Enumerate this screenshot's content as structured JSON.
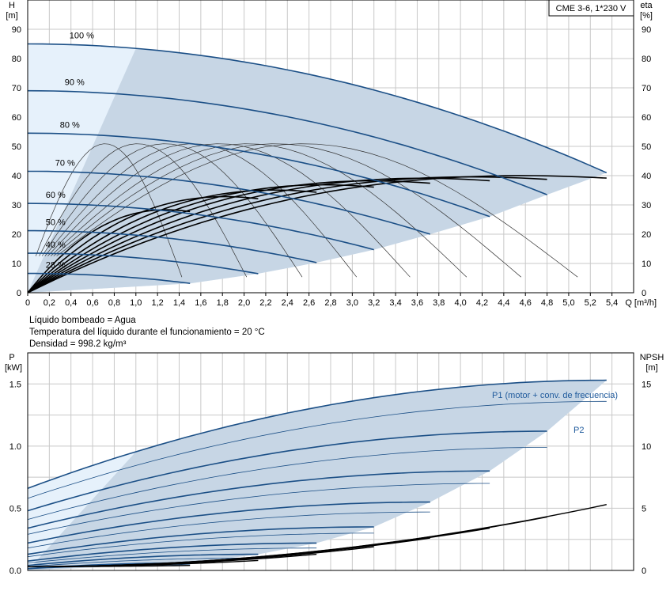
{
  "colors": {
    "grid": "#c8c8c8",
    "frame": "#000000",
    "curve_blue": "#1b4f86",
    "curve_black": "#000000",
    "region_fill": "#c7d6e5",
    "light_fill": "#e6f1fb",
    "label_blue": "#1f5a9c"
  },
  "info": {
    "line1": "Líquido bombeado = Agua",
    "line2": "Temperatura del líquido durante el funcionamiento = 20 °C",
    "line3": "Densidad = 998.2 kg/m³"
  },
  "chart_data": [
    {
      "type": "line",
      "title": "CME 3-6, 1*230 V",
      "x_axis": {
        "label": "Q [m³/h]",
        "range": [
          0,
          5.6
        ],
        "ticks": [
          "0",
          "0,2",
          "0,4",
          "0,6",
          "0,8",
          "1,0",
          "1,2",
          "1,4",
          "1,6",
          "1,8",
          "2,0",
          "2,2",
          "2,4",
          "2,6",
          "2,8",
          "3,0",
          "3,2",
          "3,4",
          "3,6",
          "3,8",
          "4,0",
          "4,2",
          "4,4",
          "4,6",
          "4,8",
          "5,0",
          "5,2",
          "5,4"
        ]
      },
      "y_axis_left": {
        "label_top": "H",
        "label_unit": "[m]",
        "range": [
          0,
          100
        ],
        "ticks": [
          "0",
          "10",
          "20",
          "30",
          "40",
          "50",
          "60",
          "70",
          "80",
          "90"
        ]
      },
      "y_axis_right": {
        "label_top": "eta",
        "label_unit": "[%]",
        "range": [
          0,
          100
        ],
        "ticks": [
          "0",
          "10",
          "20",
          "30",
          "40",
          "50",
          "60",
          "70",
          "80",
          "90"
        ]
      },
      "grid": true,
      "speed_curves": [
        {
          "name": "100 %",
          "qmax": 5.35,
          "h0": 85.0,
          "hend": 41.0
        },
        {
          "name": "90 %",
          "qmax": 4.8,
          "h0": 69.0,
          "hend": 33.5
        },
        {
          "name": "80 %",
          "qmax": 4.27,
          "h0": 54.5,
          "hend": 26.0
        },
        {
          "name": "70 %",
          "qmax": 3.72,
          "h0": 41.5,
          "hend": 20.0
        },
        {
          "name": "60 %",
          "qmax": 3.2,
          "h0": 30.5,
          "hend": 14.7
        },
        {
          "name": "50 %",
          "qmax": 2.67,
          "h0": 21.2,
          "hend": 10.3
        },
        {
          "name": "40 %",
          "qmax": 2.13,
          "h0": 13.5,
          "hend": 6.5
        },
        {
          "name": "28 %",
          "qmax": 1.5,
          "h0": 6.6,
          "hend": 3.2
        }
      ],
      "efficiency_curves": [
        {
          "name": "eta",
          "qmax": 5.35,
          "peak": 44.5
        },
        {
          "name": "eta",
          "qmax": 4.8,
          "peak": 44.0
        },
        {
          "name": "eta",
          "qmax": 4.27,
          "peak": 43.5
        },
        {
          "name": "eta",
          "qmax": 3.72,
          "peak": 42.5
        },
        {
          "name": "eta",
          "qmax": 3.2,
          "peak": 41.0
        },
        {
          "name": "eta",
          "qmax": 2.67,
          "peak": 39.0
        },
        {
          "name": "eta",
          "qmax": 2.13,
          "peak": 36.5
        },
        {
          "name": "eta",
          "qmax": 1.5,
          "peak": 31.5
        }
      ],
      "thin_curves": [
        {
          "qmax": 5.35,
          "peak": 51.0
        },
        {
          "qmax": 4.8,
          "peak": 51.0
        },
        {
          "qmax": 4.27,
          "peak": 51.0
        },
        {
          "qmax": 3.72,
          "peak": 51.0
        },
        {
          "qmax": 3.2,
          "peak": 51.0
        },
        {
          "qmax": 2.67,
          "peak": 51.0
        },
        {
          "qmax": 2.13,
          "peak": 51.0
        },
        {
          "qmax": 1.5,
          "peak": 51.0
        }
      ]
    },
    {
      "type": "line",
      "x_range": [
        0,
        5.6
      ],
      "y_axis_left": {
        "label_top": "P",
        "label_unit": "[kW]",
        "range": [
          0,
          1.75
        ],
        "ticks": [
          "0.0",
          "0.5",
          "1.0",
          "1.5"
        ]
      },
      "y_axis_right": {
        "label_top": "NPSH",
        "label_unit": "[m]",
        "range": [
          0,
          17.5
        ],
        "ticks": [
          "0",
          "5",
          "10",
          "15"
        ]
      },
      "grid": true,
      "annotations": {
        "p1": "P1 (motor + conv. de frecuencia)",
        "p2": "P2"
      },
      "p1_curves": [
        {
          "qmax": 5.35,
          "p0": 0.66,
          "pmax": 1.53
        },
        {
          "qmax": 4.8,
          "p0": 0.48,
          "pmax": 1.12
        },
        {
          "qmax": 4.27,
          "p0": 0.34,
          "pmax": 0.8
        },
        {
          "qmax": 3.72,
          "p0": 0.22,
          "pmax": 0.55
        },
        {
          "qmax": 3.2,
          "p0": 0.13,
          "pmax": 0.35
        },
        {
          "qmax": 2.67,
          "p0": 0.075,
          "pmax": 0.22
        },
        {
          "qmax": 2.13,
          "p0": 0.04,
          "pmax": 0.13
        },
        {
          "qmax": 1.5,
          "p0": 0.015,
          "pmax": 0.06
        }
      ],
      "p2_curves": [
        {
          "qmax": 5.35,
          "p0": 0.58,
          "pmax": 1.36
        },
        {
          "qmax": 4.8,
          "p0": 0.41,
          "pmax": 0.99
        },
        {
          "qmax": 4.27,
          "p0": 0.29,
          "pmax": 0.7
        },
        {
          "qmax": 3.72,
          "p0": 0.18,
          "pmax": 0.47
        },
        {
          "qmax": 3.2,
          "p0": 0.11,
          "pmax": 0.3
        },
        {
          "qmax": 2.67,
          "p0": 0.06,
          "pmax": 0.18
        },
        {
          "qmax": 2.13,
          "p0": 0.03,
          "pmax": 0.1
        },
        {
          "qmax": 1.5,
          "p0": 0.012,
          "pmax": 0.045
        }
      ],
      "npsh_curves": [
        {
          "qmax": 5.35,
          "nmax": 5.3
        },
        {
          "qmax": 4.8,
          "nmax": 4.3
        },
        {
          "qmax": 4.27,
          "nmax": 3.4
        },
        {
          "qmax": 3.72,
          "nmax": 2.6
        },
        {
          "qmax": 3.2,
          "nmax": 1.9
        },
        {
          "qmax": 2.67,
          "nmax": 1.3
        },
        {
          "qmax": 2.13,
          "nmax": 0.8
        },
        {
          "qmax": 1.5,
          "nmax": 0.4
        }
      ]
    }
  ]
}
